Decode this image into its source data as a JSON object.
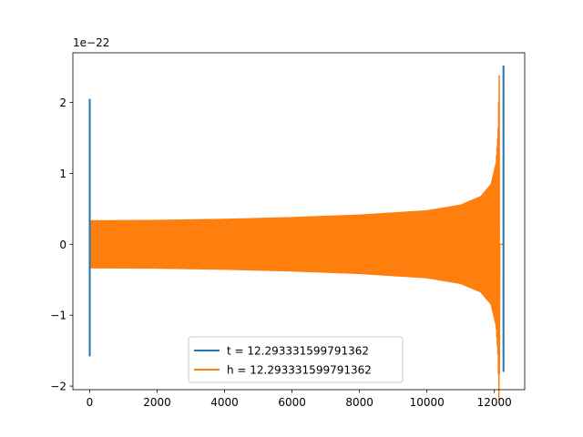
{
  "chart_data": {
    "type": "line",
    "offset_label": "1e−22",
    "xlim": [
      -500,
      12900
    ],
    "ylim": [
      -2.05,
      2.7
    ],
    "x_ticks": [
      0,
      2000,
      4000,
      6000,
      8000,
      10000,
      12000
    ],
    "x_tick_labels": [
      "0",
      "2000",
      "4000",
      "6000",
      "8000",
      "10000",
      "12000"
    ],
    "y_ticks": [
      -2,
      -1,
      0,
      1,
      2
    ],
    "y_tick_labels": [
      "−2",
      "−1",
      "0",
      "1",
      "2"
    ],
    "grid": false,
    "legend_position": "lower center",
    "series": [
      {
        "name": "t = 12.293331599791362",
        "color": "#1f77b4",
        "x": [
          0,
          0,
          0,
          0,
          12270,
          12270,
          12270,
          12270
        ],
        "y": [
          0,
          2.05,
          -1.58,
          0,
          0,
          2.52,
          -1.8,
          0
        ]
      },
      {
        "name": "h = 12.293331599791362",
        "color": "#ff7f0e",
        "envelope_x": [
          0,
          2000,
          4000,
          6000,
          8000,
          10000,
          11000,
          11600,
          11900,
          12050,
          12110,
          12150,
          12160
        ],
        "envelope_amplitude": [
          0.34,
          0.345,
          0.36,
          0.385,
          0.42,
          0.48,
          0.56,
          0.68,
          0.85,
          1.15,
          1.6,
          2.52,
          0
        ]
      }
    ],
    "legend": [
      "t = 12.293331599791362",
      "h = 12.293331599791362"
    ]
  }
}
